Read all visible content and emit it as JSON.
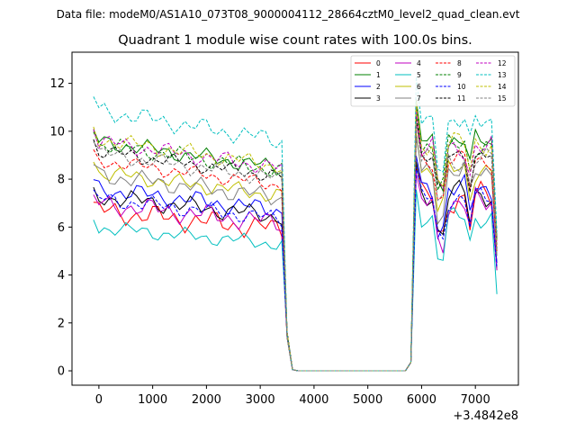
{
  "suptitle": "Data file: modeM0/AS1A10_073T08_9000004112_28664cztM0_level2_quad_clean.evt",
  "chart_data": {
    "type": "line",
    "title": "Quadrant 1 module wise count rates with 100.0s bins.",
    "xlabel": "",
    "ylabel": "",
    "x_offset_label": "+3.4842e8",
    "xlim": [
      -500,
      7800
    ],
    "ylim": [
      -0.6,
      13.3
    ],
    "xticks": [
      0,
      1000,
      2000,
      3000,
      4000,
      5000,
      6000,
      7000
    ],
    "yticks": [
      0,
      2,
      4,
      6,
      8,
      10,
      12
    ],
    "legend_position": "top-right",
    "segments": [
      {
        "x_start": -100,
        "x_end": 3400,
        "step": 100
      },
      {
        "x": [
          3500,
          3600,
          3700,
          3800,
          3900,
          4000,
          4100,
          4200,
          4300,
          4400,
          4500,
          4600,
          4700,
          4800,
          4900,
          5000,
          5100,
          5200,
          5300,
          5400,
          5500,
          5600,
          5700,
          5800
        ]
      },
      {
        "x_start": 5900,
        "x_end": 7400,
        "step": 100
      }
    ],
    "series": [
      {
        "name": "0",
        "color": "#ff0000",
        "dash": "solid",
        "level": 6.7,
        "spread": 0.55,
        "phase": 0.3,
        "post": 7.2,
        "end": 4.5
      },
      {
        "name": "1",
        "color": "#008000",
        "dash": "solid",
        "level": 9.6,
        "spread": 0.4,
        "phase": 1.1,
        "post": 9.6,
        "end": 5.5
      },
      {
        "name": "2",
        "color": "#0000ff",
        "dash": "solid",
        "level": 7.6,
        "spread": 0.45,
        "phase": 2.0,
        "post": 7.6,
        "end": 4.5
      },
      {
        "name": "3",
        "color": "#000000",
        "dash": "solid",
        "level": 7.3,
        "spread": 0.45,
        "phase": 2.7,
        "post": 7.4,
        "end": 4.2
      },
      {
        "name": "4",
        "color": "#c000c0",
        "dash": "solid",
        "level": 7.0,
        "spread": 0.5,
        "phase": 0.9,
        "post": 7.0,
        "end": 4.2
      },
      {
        "name": "5",
        "color": "#00bfbf",
        "dash": "solid",
        "level": 6.0,
        "spread": 0.35,
        "phase": 3.3,
        "post": 6.4,
        "end": 3.2
      },
      {
        "name": "6",
        "color": "#bfbf00",
        "dash": "solid",
        "level": 8.3,
        "spread": 0.4,
        "phase": 4.0,
        "post": 8.4,
        "end": 4.8
      },
      {
        "name": "7",
        "color": "#808080",
        "dash": "solid",
        "level": 8.2,
        "spread": 0.45,
        "phase": 1.7,
        "post": 8.3,
        "end": 4.8
      },
      {
        "name": "8",
        "color": "#ff0000",
        "dash": "dashed",
        "level": 8.8,
        "spread": 0.35,
        "phase": 2.4,
        "post": 8.8,
        "end": 5.0
      },
      {
        "name": "9",
        "color": "#008000",
        "dash": "dashed",
        "level": 9.5,
        "spread": 0.4,
        "phase": 3.8,
        "post": 9.4,
        "end": 5.4
      },
      {
        "name": "10",
        "color": "#0000ff",
        "dash": "dashed",
        "level": 7.2,
        "spread": 0.4,
        "phase": 0.6,
        "post": 7.2,
        "end": 4.3
      },
      {
        "name": "11",
        "color": "#000000",
        "dash": "dashed",
        "level": 9.2,
        "spread": 0.35,
        "phase": 4.6,
        "post": 9.0,
        "end": 5.1
      },
      {
        "name": "12",
        "color": "#c000c0",
        "dash": "dashed",
        "level": 9.6,
        "spread": 0.4,
        "phase": 5.2,
        "post": 9.3,
        "end": 5.3
      },
      {
        "name": "13",
        "color": "#00bfbf",
        "dash": "dashed",
        "level": 10.9,
        "spread": 0.45,
        "phase": 1.4,
        "post": 10.4,
        "end": 5.8
      },
      {
        "name": "14",
        "color": "#bfbf00",
        "dash": "dashed",
        "level": 9.7,
        "spread": 0.4,
        "phase": 2.9,
        "post": 9.5,
        "end": 5.3
      },
      {
        "name": "15",
        "color": "#808080",
        "dash": "dashed",
        "level": 9.1,
        "spread": 0.4,
        "phase": 5.8,
        "post": 8.8,
        "end": 5.0
      }
    ]
  }
}
